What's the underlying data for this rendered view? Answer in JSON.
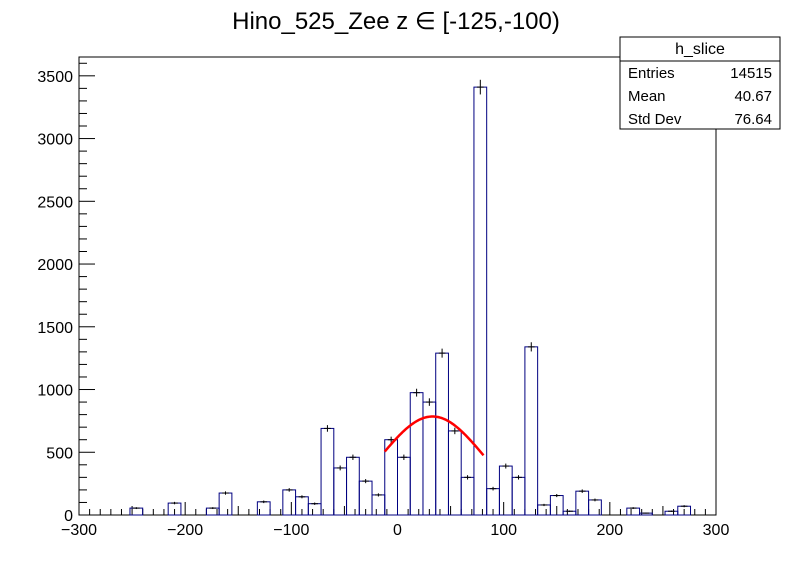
{
  "chart_data": {
    "type": "histogram",
    "title": "Hino_525_Zee z  ∈ [-125,-100)",
    "xlim": [
      -300,
      300
    ],
    "ylim": [
      0,
      3650
    ],
    "x_ticks": [
      -300,
      -200,
      -100,
      0,
      100,
      200,
      300
    ],
    "y_ticks": [
      0,
      500,
      1000,
      1500,
      2000,
      2500,
      3000,
      3500
    ],
    "bin_width": 12,
    "bins": [
      {
        "x": -294,
        "y": 0
      },
      {
        "x": -282,
        "y": 0
      },
      {
        "x": -270,
        "y": 0
      },
      {
        "x": -258,
        "y": 0
      },
      {
        "x": -246,
        "y": 55
      },
      {
        "x": -234,
        "y": 0
      },
      {
        "x": -222,
        "y": 0
      },
      {
        "x": -210,
        "y": 95
      },
      {
        "x": -198,
        "y": 0
      },
      {
        "x": -186,
        "y": 0
      },
      {
        "x": -174,
        "y": 55
      },
      {
        "x": -162,
        "y": 175
      },
      {
        "x": -150,
        "y": 0
      },
      {
        "x": -138,
        "y": 0
      },
      {
        "x": -126,
        "y": 105
      },
      {
        "x": -114,
        "y": 0
      },
      {
        "x": -102,
        "y": 200
      },
      {
        "x": -90,
        "y": 145
      },
      {
        "x": -78,
        "y": 90
      },
      {
        "x": -66,
        "y": 690
      },
      {
        "x": -54,
        "y": 375
      },
      {
        "x": -42,
        "y": 460
      },
      {
        "x": -30,
        "y": 270
      },
      {
        "x": -18,
        "y": 160
      },
      {
        "x": -6,
        "y": 600
      },
      {
        "x": 6,
        "y": 460
      },
      {
        "x": 18,
        "y": 975
      },
      {
        "x": 30,
        "y": 900
      },
      {
        "x": 42,
        "y": 1290
      },
      {
        "x": 54,
        "y": 670
      },
      {
        "x": 66,
        "y": 300
      },
      {
        "x": 78,
        "y": 3410
      },
      {
        "x": 90,
        "y": 210
      },
      {
        "x": 102,
        "y": 390
      },
      {
        "x": 114,
        "y": 300
      },
      {
        "x": 126,
        "y": 1340
      },
      {
        "x": 138,
        "y": 80
      },
      {
        "x": 150,
        "y": 155
      },
      {
        "x": 162,
        "y": 30
      },
      {
        "x": 174,
        "y": 190
      },
      {
        "x": 186,
        "y": 120
      },
      {
        "x": 198,
        "y": 0
      },
      {
        "x": 210,
        "y": 0
      },
      {
        "x": 222,
        "y": 55
      },
      {
        "x": 234,
        "y": 15
      },
      {
        "x": 246,
        "y": 0
      },
      {
        "x": 258,
        "y": 30
      },
      {
        "x": 270,
        "y": 70
      },
      {
        "x": 282,
        "y": 0
      },
      {
        "x": 294,
        "y": 0
      }
    ],
    "fit": {
      "color": "#ff0000",
      "x_range": [
        -12,
        81
      ],
      "peak_x": 33,
      "peak_y": 785,
      "sigma": 48
    },
    "line_color": "#000080",
    "stats": {
      "title": "h_slice",
      "rows": [
        {
          "label": "Entries",
          "value": "14515"
        },
        {
          "label": "Mean",
          "value": "40.67"
        },
        {
          "label": "Std Dev",
          "value": "76.64"
        }
      ]
    }
  }
}
